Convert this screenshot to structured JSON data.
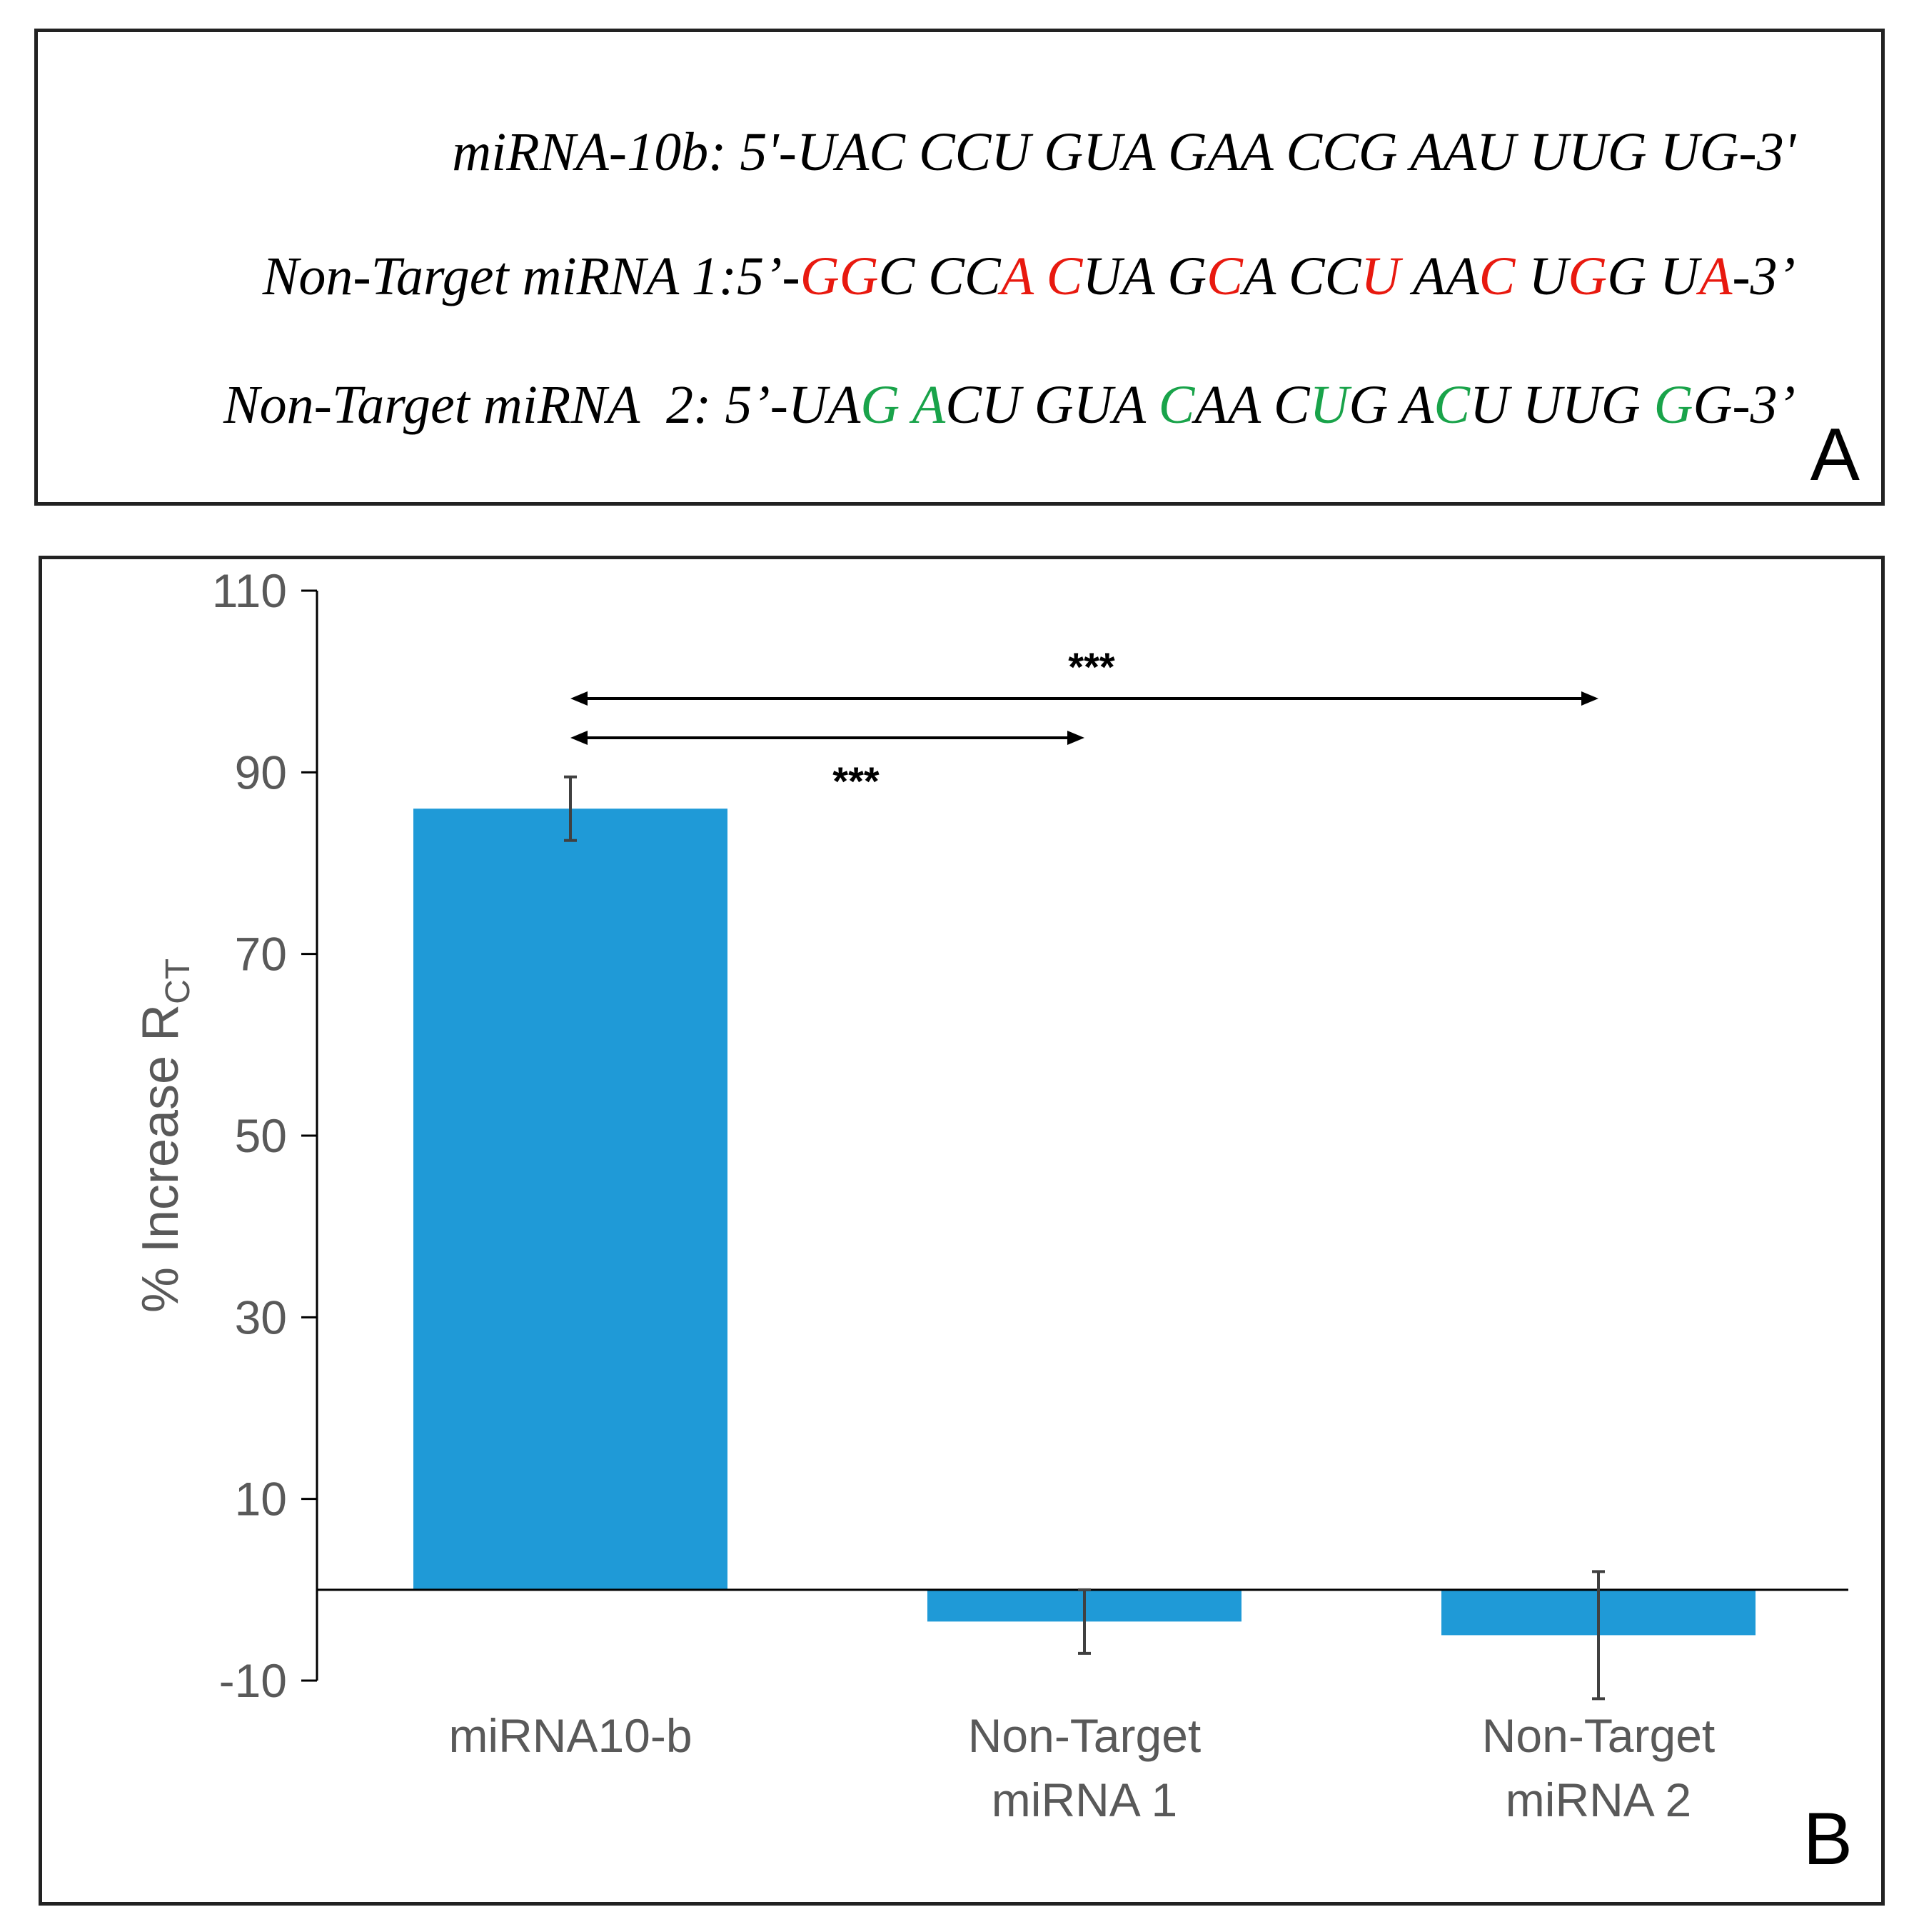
{
  "panel_a": {
    "letter": "A",
    "sequences": [
      {
        "name": "miRNA-10b",
        "segments": [
          {
            "text": "miRNA-10b: 5'-UAC CCU GUA GAA CCG AAU UUG UG-3'",
            "color": "#000000"
          }
        ]
      },
      {
        "name": "Non-Target miRNA 1",
        "segments": [
          {
            "text": "Non-Target miRNA 1:5’-",
            "color": "#000000"
          },
          {
            "text": "GG",
            "color": "#e8190f"
          },
          {
            "text": "C CC",
            "color": "#000000"
          },
          {
            "text": "A",
            "color": "#e8190f"
          },
          {
            "text": " ",
            "color": "#000000"
          },
          {
            "text": "C",
            "color": "#e8190f"
          },
          {
            "text": "UA G",
            "color": "#000000"
          },
          {
            "text": "C",
            "color": "#e8190f"
          },
          {
            "text": "A CC",
            "color": "#000000"
          },
          {
            "text": "U",
            "color": "#e8190f"
          },
          {
            "text": " AA",
            "color": "#000000"
          },
          {
            "text": "C",
            "color": "#e8190f"
          },
          {
            "text": " U",
            "color": "#000000"
          },
          {
            "text": "G",
            "color": "#e8190f"
          },
          {
            "text": "G U",
            "color": "#000000"
          },
          {
            "text": "A",
            "color": "#e8190f"
          },
          {
            "text": "-3’",
            "color": "#000000"
          }
        ]
      },
      {
        "name": "Non-Target miRNA 2",
        "segments": [
          {
            "text": "Non-Target miRNA  2: 5’-UA",
            "color": "#000000"
          },
          {
            "text": "G",
            "color": "#19a34a"
          },
          {
            "text": " ",
            "color": "#000000"
          },
          {
            "text": "A",
            "color": "#19a34a"
          },
          {
            "text": "CU GUA ",
            "color": "#000000"
          },
          {
            "text": "C",
            "color": "#19a34a"
          },
          {
            "text": "AA C",
            "color": "#000000"
          },
          {
            "text": "U",
            "color": "#19a34a"
          },
          {
            "text": "G A",
            "color": "#000000"
          },
          {
            "text": "C",
            "color": "#19a34a"
          },
          {
            "text": "U UUG ",
            "color": "#000000"
          },
          {
            "text": "G",
            "color": "#19a34a"
          },
          {
            "text": "G-3’",
            "color": "#000000"
          }
        ]
      }
    ]
  },
  "panel_b": {
    "letter": "B"
  },
  "chart_data": {
    "type": "bar",
    "categories": [
      [
        "miRNA10-b"
      ],
      [
        "Non-Target",
        "miRNA 1"
      ],
      [
        "Non-Target",
        "miRNA 2"
      ]
    ],
    "values": [
      86,
      -3.5,
      -5
    ],
    "errors": [
      3.5,
      3.5,
      7
    ],
    "ylabel": "% Increase R",
    "ylabel_sub": "CT",
    "ylim": [
      -10,
      110
    ],
    "yticks": [
      "110",
      "90",
      "70",
      "50",
      "30",
      "10",
      "-10"
    ],
    "ytick_values": [
      110,
      90,
      70,
      50,
      30,
      10,
      -10
    ],
    "bar_color": "#1f9ad7",
    "error_color": "#404040",
    "significance": [
      {
        "from": 0,
        "to": 1,
        "label": "***"
      },
      {
        "from": 0,
        "to": 2,
        "label": "***"
      }
    ]
  }
}
